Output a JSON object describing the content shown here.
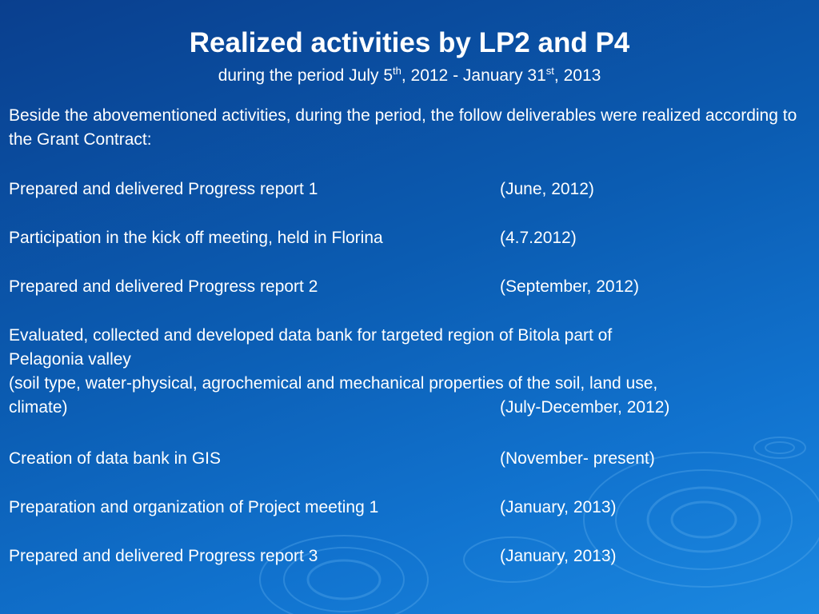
{
  "slide": {
    "title": "Realized activities by LP2 and P4",
    "subtitle": {
      "prefix": "during the period July 5",
      "sup1": "th",
      "middle": ", 2012 - January 31",
      "sup2": "st",
      "suffix": ", 2013"
    },
    "intro": "Beside the abovementioned activities, during the period, the follow deliverables were realized according to the Grant Contract:",
    "items": [
      {
        "text": "Prepared and delivered Progress report 1",
        "date": "(June, 2012)"
      },
      {
        "text": "Participation in the kick off meeting, held in Florina",
        "date": "(4.7.2012)"
      },
      {
        "text": "Prepared and delivered Progress report 2",
        "date": "(September, 2012)"
      }
    ],
    "long_item": {
      "line1": "Evaluated, collected and developed data bank for targeted region of Bitola part of",
      "line2": "Pelagonia valley",
      "line3": "(soil type, water-physical, agrochemical and mechanical properties of the soil, land use,",
      "line4": "climate)",
      "date": "(July-December, 2012)"
    },
    "items_after": [
      {
        "text": "Creation of data bank in GIS",
        "date": "(November- present)"
      },
      {
        "text": "Preparation and organization of Project meeting 1",
        "date": "(January, 2013)"
      },
      {
        "text": "Prepared and delivered Progress report 3",
        "date": "(January, 2013)"
      }
    ]
  }
}
